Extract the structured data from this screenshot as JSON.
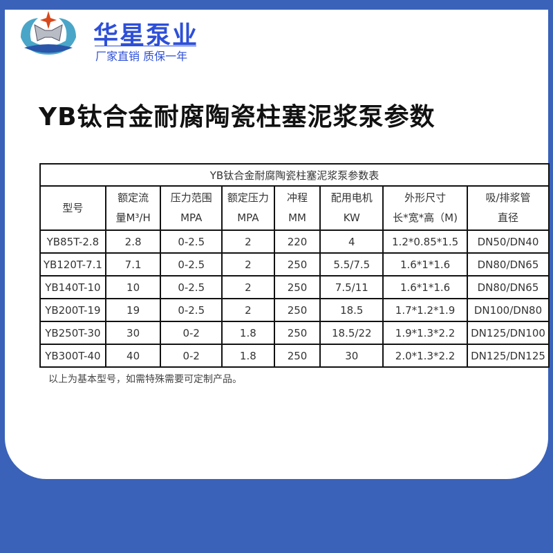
{
  "brand": {
    "name": "华星泵业",
    "slogan": "厂家直销 质保一年"
  },
  "title": "YB钛合金耐腐陶瓷柱塞泥浆泵参数",
  "table": {
    "caption": "YB钛合金耐腐陶瓷柱塞泥浆泵参数表",
    "headers": [
      [
        "型号",
        ""
      ],
      [
        "额定流",
        "量M³/H"
      ],
      [
        "压力范围",
        "MPA"
      ],
      [
        "额定压力",
        "MPA"
      ],
      [
        "冲程",
        "MM"
      ],
      [
        "配用电机",
        "KW"
      ],
      [
        "外形尺寸",
        "长*宽*高（M)"
      ],
      [
        "吸/排浆管",
        "直径"
      ]
    ],
    "rows": [
      [
        "YB85T-2.8",
        "2.8",
        "0-2.5",
        "2",
        "220",
        "4",
        "1.2*0.85*1.5",
        "DN50/DN40"
      ],
      [
        "YB120T-7.1",
        "7.1",
        "0-2.5",
        "2",
        "250",
        "5.5/7.5",
        "1.6*1*1.6",
        "DN80/DN65"
      ],
      [
        "YB140T-10",
        "10",
        "0-2.5",
        "2",
        "250",
        "7.5/11",
        "1.6*1*1.6",
        "DN80/DN65"
      ],
      [
        "YB200T-19",
        "19",
        "0-2.5",
        "2",
        "250",
        "18.5",
        "1.7*1.2*1.9",
        "DN100/DN80"
      ],
      [
        "YB250T-30",
        "30",
        "0-2",
        "1.8",
        "250",
        "18.5/22",
        "1.9*1.3*2.2",
        "DN125/DN100"
      ],
      [
        "YB300T-40",
        "40",
        "0-2",
        "1.8",
        "250",
        "30",
        "2.0*1.3*2.2",
        "DN125/DN125"
      ]
    ]
  },
  "note": "以上为基本型号，如需特殊需要可定制产品。",
  "colors": {
    "background": "#3a62b9",
    "brand": "#2d4fd8"
  }
}
